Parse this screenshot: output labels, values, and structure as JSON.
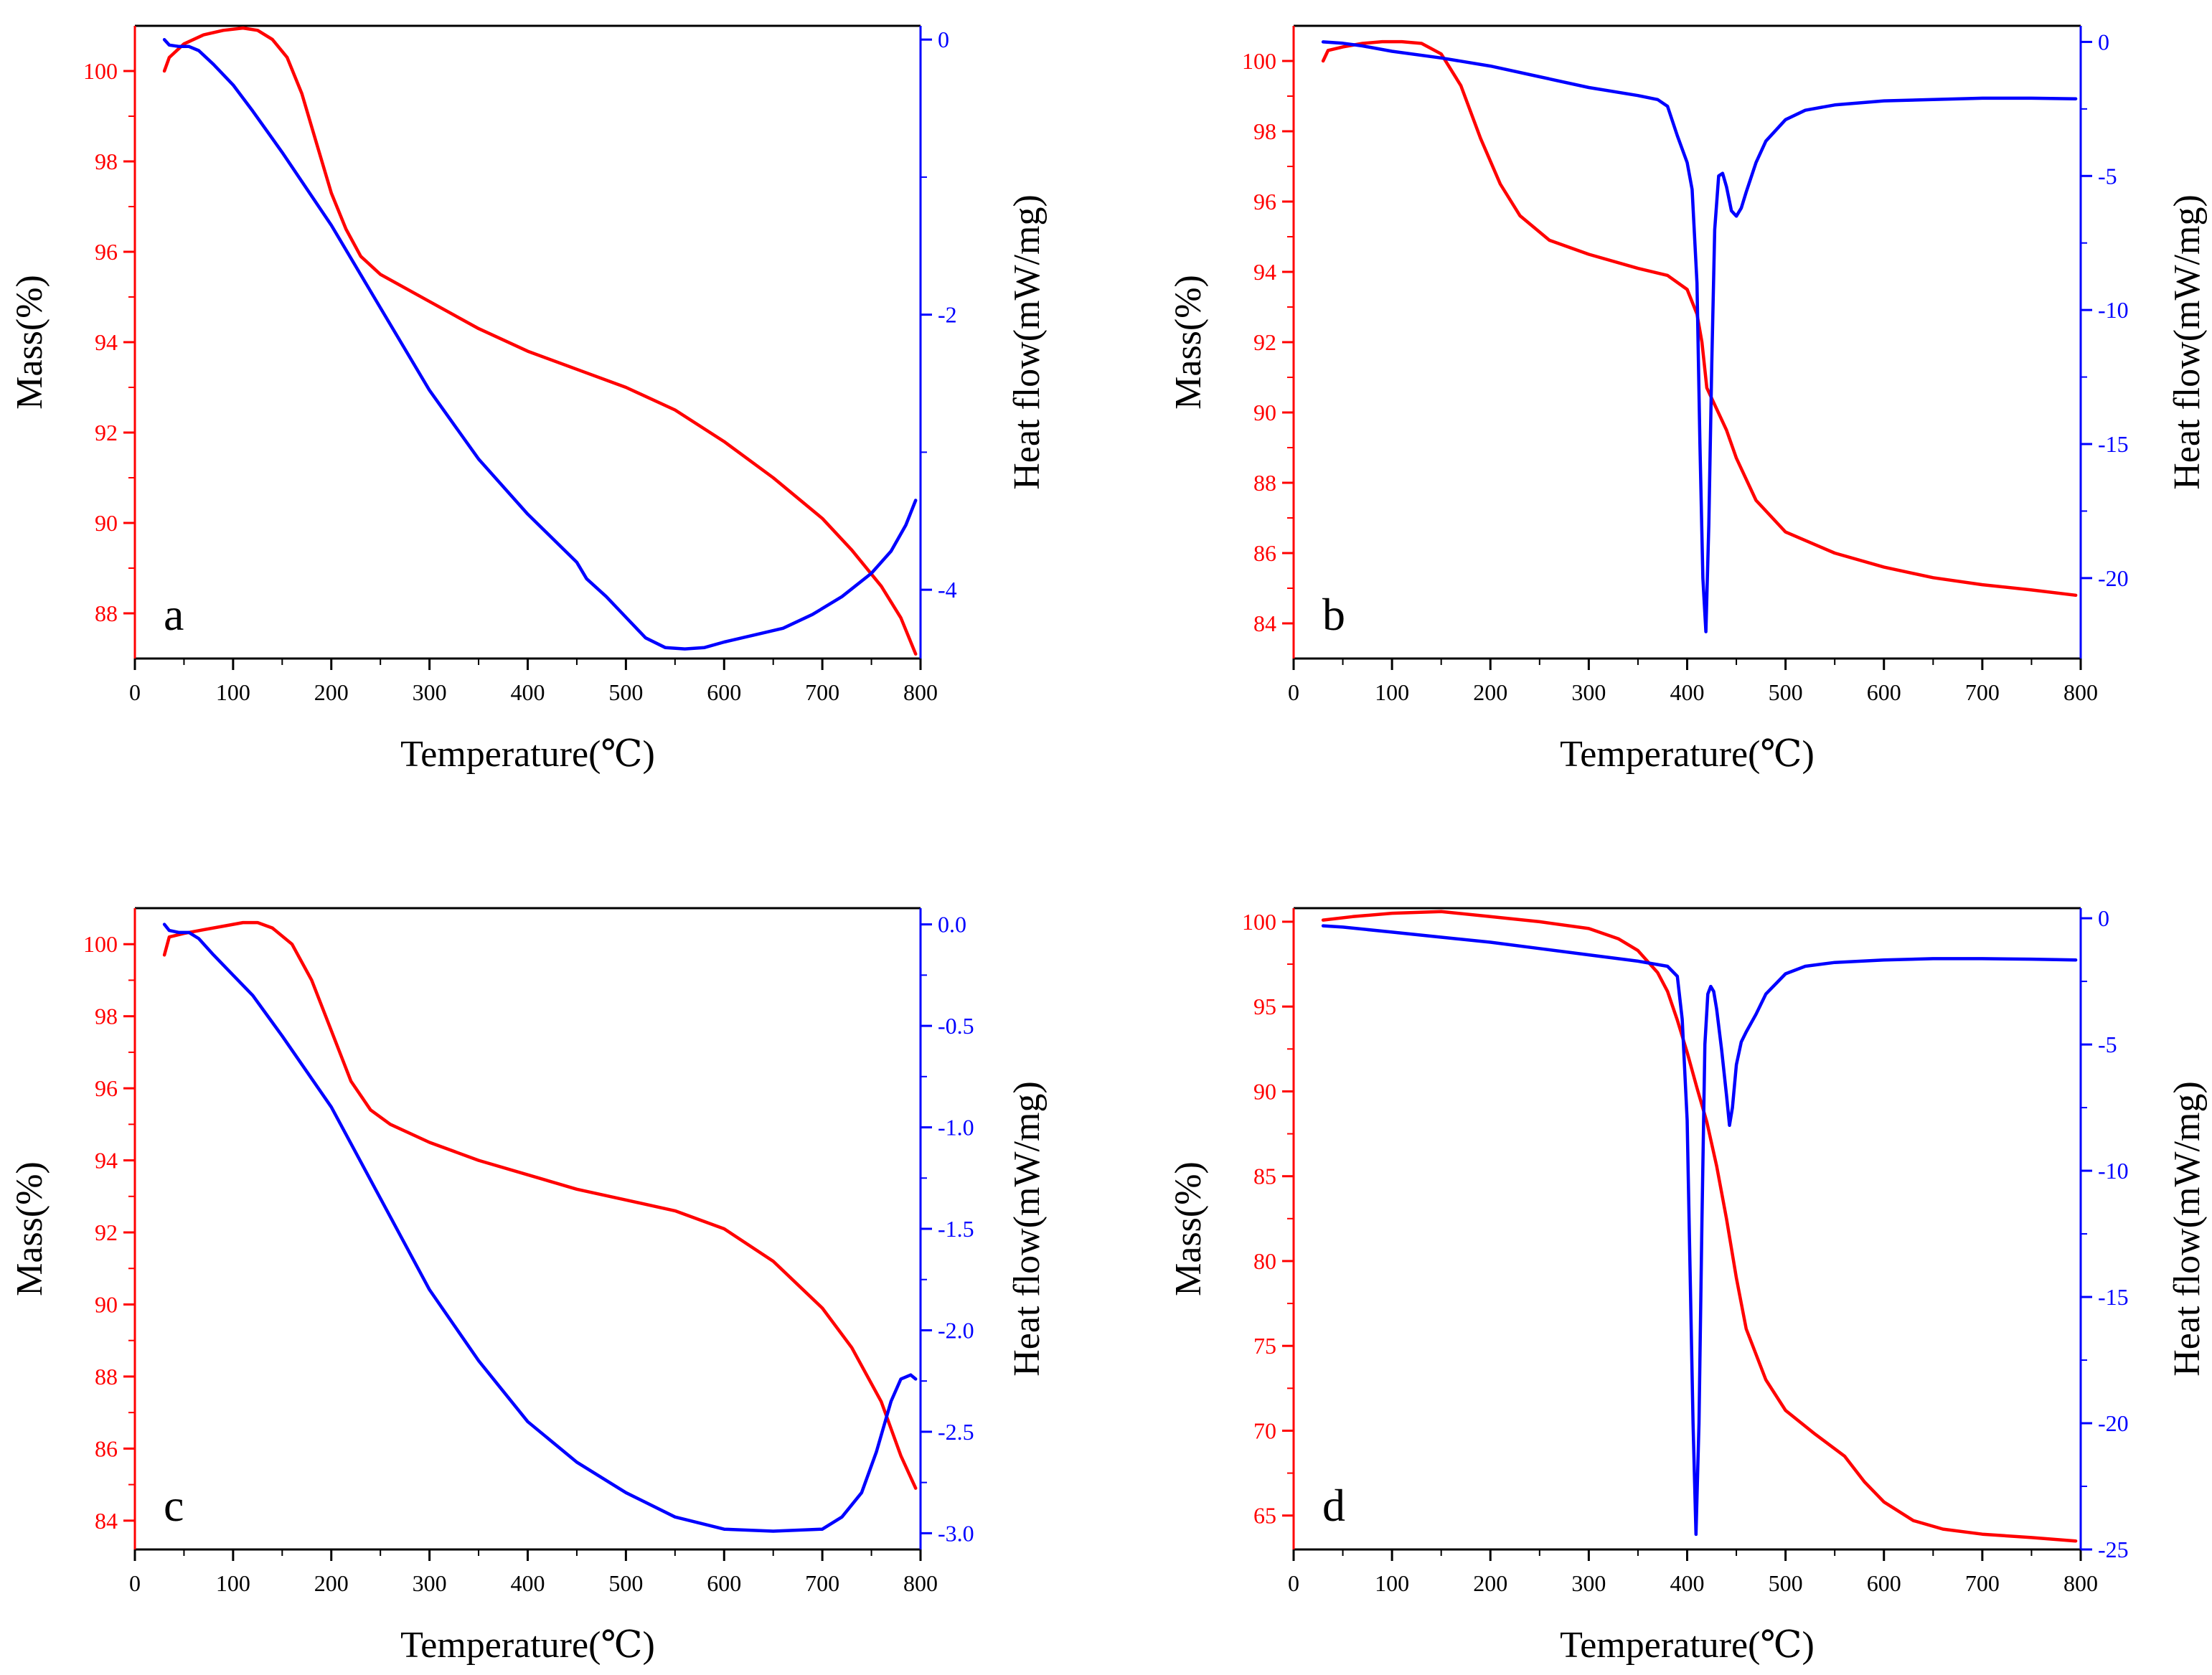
{
  "figure": {
    "colors": {
      "mass": "#ff0000",
      "heat": "#0000ff",
      "axis": "#000000"
    }
  },
  "chart_data": [
    {
      "type": "line",
      "panel_label": "a",
      "xlabel": "Temperature(℃)",
      "ylabel_left": "Mass(%)",
      "ylabel_right": "Heat flow(mW/mg)",
      "xlim": [
        0,
        800
      ],
      "xticks": [
        0,
        100,
        200,
        300,
        400,
        500,
        600,
        700,
        800
      ],
      "ylim_left": [
        87,
        101
      ],
      "yticks_left": [
        "88",
        "90",
        "92",
        "94",
        "96",
        "98",
        "100"
      ],
      "ylim_right": [
        -4.5,
        0.1
      ],
      "yticks_right": [
        "-4",
        "-2",
        "0"
      ],
      "series": [
        {
          "name": "Mass",
          "axis": "left",
          "color": "#ff0000",
          "x": [
            30,
            35,
            50,
            70,
            90,
            110,
            125,
            140,
            155,
            170,
            185,
            200,
            215,
            230,
            250,
            300,
            350,
            400,
            450,
            500,
            550,
            600,
            650,
            700,
            730,
            760,
            780,
            795
          ],
          "y": [
            100.0,
            100.3,
            100.6,
            100.8,
            100.9,
            100.95,
            100.9,
            100.7,
            100.3,
            99.5,
            98.4,
            97.3,
            96.5,
            95.9,
            95.5,
            94.9,
            94.3,
            93.8,
            93.4,
            93.0,
            92.5,
            91.8,
            91.0,
            90.1,
            89.4,
            88.6,
            87.9,
            87.1
          ]
        },
        {
          "name": "Heat flow",
          "axis": "right",
          "color": "#0000ff",
          "x": [
            30,
            35,
            45,
            55,
            65,
            80,
            100,
            120,
            150,
            200,
            250,
            300,
            350,
            400,
            450,
            460,
            480,
            500,
            520,
            540,
            560,
            580,
            600,
            630,
            660,
            690,
            720,
            750,
            770,
            785,
            795
          ],
          "y": [
            0.0,
            -0.04,
            -0.05,
            -0.05,
            -0.08,
            -0.18,
            -0.33,
            -0.52,
            -0.82,
            -1.35,
            -1.95,
            -2.55,
            -3.05,
            -3.45,
            -3.8,
            -3.92,
            -4.05,
            -4.2,
            -4.35,
            -4.42,
            -4.43,
            -4.42,
            -4.38,
            -4.33,
            -4.28,
            -4.18,
            -4.05,
            -3.88,
            -3.72,
            -3.53,
            -3.35
          ]
        }
      ]
    },
    {
      "type": "line",
      "panel_label": "b",
      "xlabel": "Temperature(℃)",
      "ylabel_left": "Mass(%)",
      "ylabel_right": "Heat flow(mW/mg)",
      "xlim": [
        0,
        800
      ],
      "xticks": [
        0,
        100,
        200,
        300,
        400,
        500,
        600,
        700,
        800
      ],
      "ylim_left": [
        83,
        101
      ],
      "yticks_left": [
        "84",
        "86",
        "88",
        "90",
        "92",
        "94",
        "96",
        "98",
        "100"
      ],
      "ylim_right": [
        -23,
        0.6
      ],
      "yticks_right": [
        "-20",
        "-15",
        "-10",
        "-5",
        "0"
      ],
      "series": [
        {
          "name": "Mass",
          "axis": "left",
          "color": "#ff0000",
          "x": [
            30,
            35,
            50,
            70,
            90,
            110,
            130,
            150,
            170,
            190,
            210,
            230,
            260,
            300,
            350,
            380,
            400,
            410,
            415,
            420,
            430,
            440,
            450,
            470,
            500,
            550,
            600,
            650,
            700,
            750,
            795
          ],
          "y": [
            100.0,
            100.3,
            100.4,
            100.5,
            100.55,
            100.55,
            100.5,
            100.2,
            99.3,
            97.8,
            96.5,
            95.6,
            94.9,
            94.5,
            94.1,
            93.9,
            93.5,
            92.8,
            92.0,
            90.7,
            90.1,
            89.5,
            88.7,
            87.5,
            86.6,
            86.0,
            85.6,
            85.3,
            85.1,
            84.95,
            84.8
          ]
        },
        {
          "name": "Heat flow",
          "axis": "right",
          "color": "#0000ff",
          "x": [
            30,
            50,
            70,
            100,
            150,
            200,
            250,
            300,
            350,
            370,
            380,
            390,
            400,
            405,
            410,
            413,
            416,
            419,
            422,
            425,
            428,
            432,
            436,
            440,
            445,
            450,
            455,
            460,
            470,
            480,
            500,
            520,
            550,
            600,
            650,
            700,
            750,
            795
          ],
          "y": [
            0.0,
            -0.05,
            -0.15,
            -0.35,
            -0.6,
            -0.9,
            -1.3,
            -1.7,
            -2.0,
            -2.15,
            -2.4,
            -3.5,
            -4.5,
            -5.5,
            -9.0,
            -15.0,
            -20.0,
            -22.0,
            -18.0,
            -12.0,
            -7.0,
            -5.0,
            -4.9,
            -5.4,
            -6.3,
            -6.5,
            -6.2,
            -5.6,
            -4.5,
            -3.7,
            -2.9,
            -2.55,
            -2.35,
            -2.2,
            -2.15,
            -2.1,
            -2.1,
            -2.12
          ]
        }
      ]
    },
    {
      "type": "line",
      "panel_label": "c",
      "xlabel": "Temperature(℃)",
      "ylabel_left": "Mass(%)",
      "ylabel_right": "Heat flow(mW/mg)",
      "xlim": [
        0,
        800
      ],
      "xticks": [
        0,
        100,
        200,
        300,
        400,
        500,
        600,
        700,
        800
      ],
      "ylim_left": [
        83.2,
        101
      ],
      "yticks_left": [
        "84",
        "86",
        "88",
        "90",
        "92",
        "94",
        "96",
        "98",
        "100"
      ],
      "ylim_right": [
        -3.08,
        0.08
      ],
      "yticks_right": [
        "-3.0",
        "-2.5",
        "-2.0",
        "-1.5",
        "-1.0",
        "-0.5",
        "0.0"
      ],
      "series": [
        {
          "name": "Mass",
          "axis": "left",
          "color": "#ff0000",
          "x": [
            30,
            35,
            50,
            70,
            90,
            110,
            125,
            140,
            160,
            180,
            200,
            220,
            240,
            260,
            300,
            350,
            400,
            450,
            500,
            550,
            600,
            650,
            700,
            730,
            760,
            780,
            795
          ],
          "y": [
            99.7,
            100.2,
            100.3,
            100.4,
            100.5,
            100.6,
            100.6,
            100.45,
            100.0,
            99.0,
            97.6,
            96.2,
            95.4,
            95.0,
            94.5,
            94.0,
            93.6,
            93.2,
            92.9,
            92.6,
            92.1,
            91.2,
            89.9,
            88.8,
            87.3,
            85.8,
            84.9
          ]
        },
        {
          "name": "Heat flow",
          "axis": "right",
          "color": "#0000ff",
          "x": [
            30,
            35,
            45,
            55,
            65,
            80,
            100,
            120,
            150,
            200,
            250,
            300,
            350,
            400,
            450,
            500,
            550,
            600,
            650,
            700,
            720,
            740,
            755,
            770,
            780,
            790,
            795
          ],
          "y": [
            0.0,
            -0.03,
            -0.04,
            -0.04,
            -0.07,
            -0.15,
            -0.25,
            -0.35,
            -0.55,
            -0.9,
            -1.35,
            -1.8,
            -2.15,
            -2.45,
            -2.65,
            -2.8,
            -2.92,
            -2.98,
            -2.99,
            -2.98,
            -2.92,
            -2.8,
            -2.6,
            -2.35,
            -2.24,
            -2.22,
            -2.24
          ]
        }
      ]
    },
    {
      "type": "line",
      "panel_label": "d",
      "xlabel": "Temperature(℃)",
      "ylabel_left": "Mass(%)",
      "ylabel_right": "Heat flow(mW/mg)",
      "xlim": [
        0,
        800
      ],
      "xticks": [
        0,
        100,
        200,
        300,
        400,
        500,
        600,
        700,
        800
      ],
      "ylim_left": [
        63,
        100.8
      ],
      "yticks_left": [
        "65",
        "70",
        "75",
        "80",
        "85",
        "90",
        "95",
        "100"
      ],
      "ylim_right": [
        -25,
        0.4
      ],
      "yticks_right": [
        "-25",
        "-20",
        "-15",
        "-10",
        "-5",
        "0"
      ],
      "series": [
        {
          "name": "Mass",
          "axis": "left",
          "color": "#ff0000",
          "x": [
            30,
            60,
            100,
            150,
            200,
            250,
            300,
            330,
            350,
            370,
            380,
            390,
            400,
            410,
            420,
            430,
            440,
            450,
            460,
            480,
            500,
            530,
            560,
            580,
            600,
            630,
            660,
            700,
            750,
            795
          ],
          "y": [
            100.1,
            100.3,
            100.5,
            100.6,
            100.3,
            100.0,
            99.6,
            99.0,
            98.3,
            97.0,
            95.9,
            94.2,
            92.3,
            90.2,
            88.2,
            85.6,
            82.5,
            79.0,
            76.0,
            73.0,
            71.2,
            69.8,
            68.5,
            67.0,
            65.8,
            64.7,
            64.2,
            63.9,
            63.7,
            63.5
          ]
        },
        {
          "name": "Heat flow",
          "axis": "right",
          "color": "#0000ff",
          "x": [
            30,
            50,
            100,
            150,
            200,
            250,
            300,
            350,
            380,
            390,
            395,
            400,
            403,
            406,
            409,
            412,
            415,
            418,
            421,
            424,
            427,
            430,
            435,
            440,
            443,
            446,
            450,
            455,
            460,
            470,
            480,
            500,
            520,
            550,
            600,
            650,
            700,
            750,
            795
          ],
          "y": [
            -0.3,
            -0.35,
            -0.55,
            -0.75,
            -0.95,
            -1.2,
            -1.45,
            -1.7,
            -1.9,
            -2.3,
            -4.0,
            -8.0,
            -14.0,
            -20.0,
            -24.4,
            -20.0,
            -12.0,
            -5.0,
            -3.0,
            -2.7,
            -2.9,
            -3.6,
            -5.2,
            -7.0,
            -8.2,
            -7.5,
            -5.8,
            -4.9,
            -4.5,
            -3.8,
            -3.0,
            -2.2,
            -1.9,
            -1.75,
            -1.65,
            -1.6,
            -1.6,
            -1.62,
            -1.65
          ]
        }
      ]
    }
  ]
}
